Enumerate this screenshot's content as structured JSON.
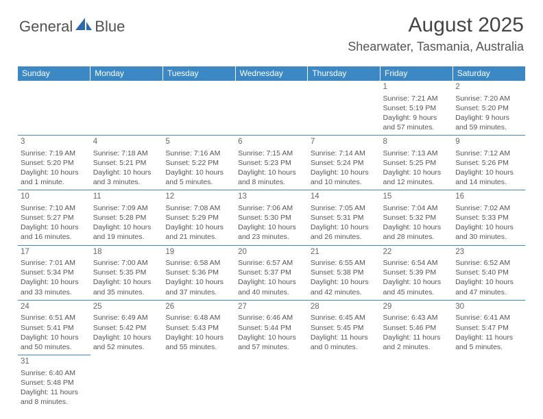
{
  "logo": {
    "text1": "General",
    "text2": "Blue"
  },
  "title": "August 2025",
  "location": "Shearwater, Tasmania, Australia",
  "colors": {
    "header_bg": "#3b88c4",
    "header_text": "#ffffff",
    "border": "#3b88c4",
    "body_text": "#555555",
    "logo_text": "#515151",
    "logo_accent": "#2f6aa8"
  },
  "weekdays": [
    "Sunday",
    "Monday",
    "Tuesday",
    "Wednesday",
    "Thursday",
    "Friday",
    "Saturday"
  ],
  "weeks": [
    [
      {
        "empty": true
      },
      {
        "empty": true
      },
      {
        "empty": true
      },
      {
        "empty": true
      },
      {
        "empty": true
      },
      {
        "day": "1",
        "sunrise": "7:21 AM",
        "sunset": "5:19 PM",
        "daylight": "9 hours and 57 minutes."
      },
      {
        "day": "2",
        "sunrise": "7:20 AM",
        "sunset": "5:20 PM",
        "daylight": "9 hours and 59 minutes."
      }
    ],
    [
      {
        "day": "3",
        "sunrise": "7:19 AM",
        "sunset": "5:20 PM",
        "daylight": "10 hours and 1 minute."
      },
      {
        "day": "4",
        "sunrise": "7:18 AM",
        "sunset": "5:21 PM",
        "daylight": "10 hours and 3 minutes."
      },
      {
        "day": "5",
        "sunrise": "7:16 AM",
        "sunset": "5:22 PM",
        "daylight": "10 hours and 5 minutes."
      },
      {
        "day": "6",
        "sunrise": "7:15 AM",
        "sunset": "5:23 PM",
        "daylight": "10 hours and 8 minutes."
      },
      {
        "day": "7",
        "sunrise": "7:14 AM",
        "sunset": "5:24 PM",
        "daylight": "10 hours and 10 minutes."
      },
      {
        "day": "8",
        "sunrise": "7:13 AM",
        "sunset": "5:25 PM",
        "daylight": "10 hours and 12 minutes."
      },
      {
        "day": "9",
        "sunrise": "7:12 AM",
        "sunset": "5:26 PM",
        "daylight": "10 hours and 14 minutes."
      }
    ],
    [
      {
        "day": "10",
        "sunrise": "7:10 AM",
        "sunset": "5:27 PM",
        "daylight": "10 hours and 16 minutes."
      },
      {
        "day": "11",
        "sunrise": "7:09 AM",
        "sunset": "5:28 PM",
        "daylight": "10 hours and 19 minutes."
      },
      {
        "day": "12",
        "sunrise": "7:08 AM",
        "sunset": "5:29 PM",
        "daylight": "10 hours and 21 minutes."
      },
      {
        "day": "13",
        "sunrise": "7:06 AM",
        "sunset": "5:30 PM",
        "daylight": "10 hours and 23 minutes."
      },
      {
        "day": "14",
        "sunrise": "7:05 AM",
        "sunset": "5:31 PM",
        "daylight": "10 hours and 26 minutes."
      },
      {
        "day": "15",
        "sunrise": "7:04 AM",
        "sunset": "5:32 PM",
        "daylight": "10 hours and 28 minutes."
      },
      {
        "day": "16",
        "sunrise": "7:02 AM",
        "sunset": "5:33 PM",
        "daylight": "10 hours and 30 minutes."
      }
    ],
    [
      {
        "day": "17",
        "sunrise": "7:01 AM",
        "sunset": "5:34 PM",
        "daylight": "10 hours and 33 minutes."
      },
      {
        "day": "18",
        "sunrise": "7:00 AM",
        "sunset": "5:35 PM",
        "daylight": "10 hours and 35 minutes."
      },
      {
        "day": "19",
        "sunrise": "6:58 AM",
        "sunset": "5:36 PM",
        "daylight": "10 hours and 37 minutes."
      },
      {
        "day": "20",
        "sunrise": "6:57 AM",
        "sunset": "5:37 PM",
        "daylight": "10 hours and 40 minutes."
      },
      {
        "day": "21",
        "sunrise": "6:55 AM",
        "sunset": "5:38 PM",
        "daylight": "10 hours and 42 minutes."
      },
      {
        "day": "22",
        "sunrise": "6:54 AM",
        "sunset": "5:39 PM",
        "daylight": "10 hours and 45 minutes."
      },
      {
        "day": "23",
        "sunrise": "6:52 AM",
        "sunset": "5:40 PM",
        "daylight": "10 hours and 47 minutes."
      }
    ],
    [
      {
        "day": "24",
        "sunrise": "6:51 AM",
        "sunset": "5:41 PM",
        "daylight": "10 hours and 50 minutes."
      },
      {
        "day": "25",
        "sunrise": "6:49 AM",
        "sunset": "5:42 PM",
        "daylight": "10 hours and 52 minutes."
      },
      {
        "day": "26",
        "sunrise": "6:48 AM",
        "sunset": "5:43 PM",
        "daylight": "10 hours and 55 minutes."
      },
      {
        "day": "27",
        "sunrise": "6:46 AM",
        "sunset": "5:44 PM",
        "daylight": "10 hours and 57 minutes."
      },
      {
        "day": "28",
        "sunrise": "6:45 AM",
        "sunset": "5:45 PM",
        "daylight": "11 hours and 0 minutes."
      },
      {
        "day": "29",
        "sunrise": "6:43 AM",
        "sunset": "5:46 PM",
        "daylight": "11 hours and 2 minutes."
      },
      {
        "day": "30",
        "sunrise": "6:41 AM",
        "sunset": "5:47 PM",
        "daylight": "11 hours and 5 minutes."
      }
    ],
    [
      {
        "day": "31",
        "sunrise": "6:40 AM",
        "sunset": "5:48 PM",
        "daylight": "11 hours and 8 minutes."
      },
      {
        "empty": true
      },
      {
        "empty": true
      },
      {
        "empty": true
      },
      {
        "empty": true
      },
      {
        "empty": true
      },
      {
        "empty": true
      }
    ]
  ]
}
